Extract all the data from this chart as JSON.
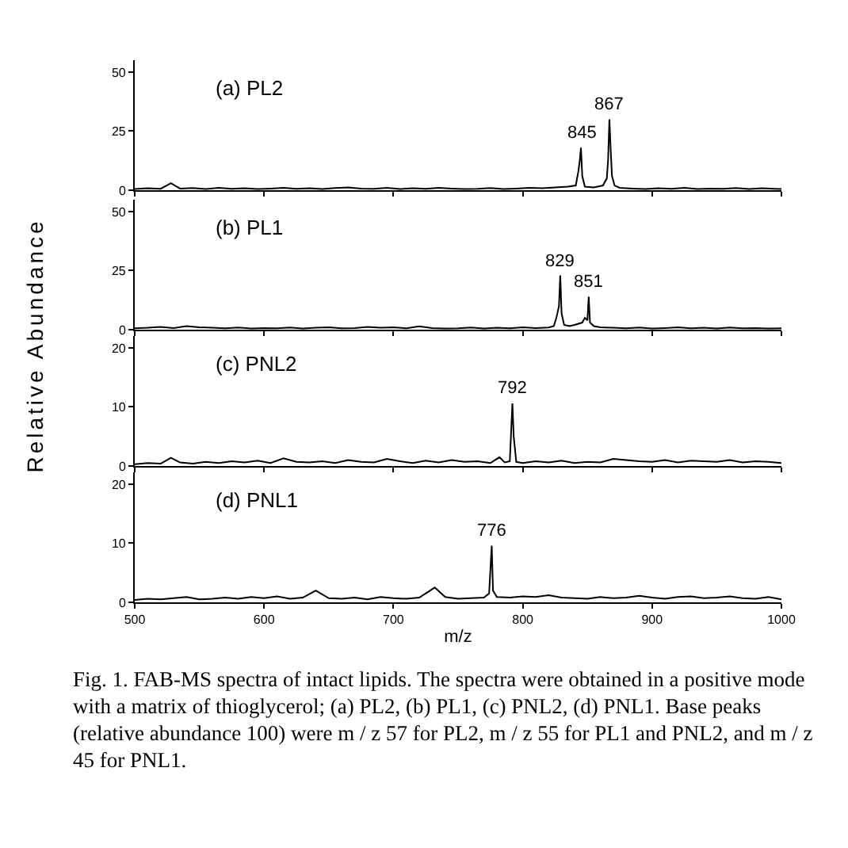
{
  "chart_data": [
    {
      "type": "line",
      "title": "(a) PL2",
      "ylabel": "Relative Abundance",
      "xlim": [
        500,
        1000
      ],
      "xticks": [
        500,
        600,
        700,
        800,
        900,
        1000
      ],
      "ylim": [
        0,
        55
      ],
      "yticks": [
        0,
        25,
        50
      ],
      "tick_labels": "y",
      "series": [
        {
          "color": "#000000",
          "x": [
            500,
            510,
            520,
            528,
            535,
            545,
            555,
            565,
            575,
            585,
            595,
            605,
            615,
            625,
            635,
            645,
            655,
            665,
            675,
            685,
            695,
            705,
            715,
            725,
            735,
            745,
            755,
            765,
            775,
            785,
            795,
            805,
            815,
            825,
            835,
            841,
            843,
            844,
            845,
            846,
            848,
            855,
            862,
            865,
            866,
            867,
            868,
            869,
            871,
            875,
            885,
            895,
            905,
            915,
            925,
            935,
            945,
            955,
            965,
            975,
            985,
            995,
            1000
          ],
          "values": [
            0.5,
            0.8,
            0.6,
            3,
            0.7,
            0.9,
            0.5,
            1,
            0.6,
            0.8,
            0.5,
            0.7,
            1,
            0.6,
            0.8,
            0.5,
            0.9,
            1.2,
            0.7,
            0.6,
            1,
            0.5,
            0.8,
            0.6,
            1,
            0.7,
            0.5,
            0.6,
            0.9,
            0.5,
            0.7,
            1,
            0.8,
            1.2,
            1.5,
            2,
            8,
            12,
            18,
            6,
            1.5,
            1.2,
            2,
            5,
            13,
            30,
            17,
            6,
            2,
            1,
            0.7,
            0.5,
            0.8,
            0.6,
            1,
            0.5,
            0.7,
            0.6,
            0.9,
            0.5,
            0.8,
            0.6,
            0.5
          ]
        }
      ],
      "annotations": [
        {
          "text": "845",
          "x": 845,
          "y": 18
        },
        {
          "text": "867",
          "x": 867,
          "y": 30
        }
      ]
    },
    {
      "type": "line",
      "title": "(b) PL1",
      "xlim": [
        500,
        1000
      ],
      "xticks": [
        500,
        600,
        700,
        800,
        900,
        1000
      ],
      "ylim": [
        0,
        55
      ],
      "yticks": [
        0,
        25,
        50
      ],
      "tick_labels": "y",
      "series": [
        {
          "color": "#000000",
          "x": [
            500,
            510,
            520,
            530,
            540,
            550,
            560,
            570,
            580,
            590,
            600,
            610,
            620,
            630,
            640,
            650,
            660,
            670,
            680,
            690,
            700,
            710,
            720,
            730,
            740,
            750,
            760,
            770,
            780,
            790,
            800,
            810,
            820,
            824,
            826,
            828,
            829,
            830,
            832,
            836,
            840,
            846,
            848,
            850,
            851,
            852,
            855,
            860,
            870,
            880,
            890,
            900,
            910,
            920,
            930,
            940,
            950,
            960,
            970,
            980,
            990,
            1000
          ],
          "values": [
            0.6,
            0.8,
            1.2,
            0.7,
            1.5,
            1,
            0.8,
            0.6,
            0.9,
            0.5,
            0.7,
            0.6,
            0.9,
            0.5,
            0.8,
            1,
            0.6,
            0.7,
            1.2,
            0.8,
            1,
            0.6,
            1.4,
            0.7,
            0.5,
            0.6,
            0.9,
            0.5,
            0.8,
            0.6,
            1,
            0.7,
            0.9,
            1.5,
            5,
            10,
            23,
            7,
            2,
            1.5,
            2,
            3,
            5,
            4,
            14,
            3,
            1.5,
            1,
            0.8,
            0.6,
            0.9,
            0.5,
            0.7,
            1,
            0.6,
            0.8,
            0.5,
            0.9,
            0.6,
            0.7,
            0.5,
            0.6
          ]
        }
      ],
      "annotations": [
        {
          "text": "829",
          "x": 829,
          "y": 23
        },
        {
          "text": "851",
          "x": 851,
          "y": 14
        }
      ]
    },
    {
      "type": "line",
      "title": "(c) PNL2",
      "xlim": [
        500,
        1000
      ],
      "xticks": [
        500,
        600,
        700,
        800,
        900,
        1000
      ],
      "ylim": [
        0,
        22
      ],
      "yticks": [
        0,
        10,
        20
      ],
      "tick_labels": "y",
      "series": [
        {
          "color": "#000000",
          "x": [
            500,
            510,
            520,
            528,
            535,
            545,
            555,
            565,
            575,
            585,
            595,
            605,
            615,
            625,
            635,
            645,
            655,
            665,
            675,
            685,
            695,
            705,
            715,
            725,
            735,
            745,
            755,
            765,
            775,
            782,
            786,
            790,
            792,
            793,
            795,
            800,
            810,
            820,
            830,
            840,
            850,
            860,
            870,
            880,
            890,
            900,
            910,
            920,
            930,
            940,
            950,
            960,
            970,
            980,
            990,
            1000
          ],
          "values": [
            0.3,
            0.5,
            0.4,
            1.4,
            0.6,
            0.4,
            0.7,
            0.5,
            0.8,
            0.6,
            0.9,
            0.5,
            1.3,
            0.7,
            0.6,
            0.8,
            0.5,
            1,
            0.7,
            0.6,
            1.2,
            0.8,
            0.5,
            0.9,
            0.6,
            1,
            0.7,
            0.8,
            0.5,
            1.5,
            0.6,
            0.8,
            10.6,
            5,
            0.7,
            0.5,
            0.8,
            0.6,
            0.9,
            0.5,
            0.7,
            0.6,
            1.2,
            1,
            0.8,
            0.7,
            1,
            0.6,
            0.9,
            0.8,
            0.7,
            1,
            0.6,
            0.8,
            0.7,
            0.5
          ]
        }
      ],
      "annotations": [
        {
          "text": "792",
          "x": 792,
          "y": 10.6
        }
      ]
    },
    {
      "type": "line",
      "title": "(d) PNL1",
      "xlabel": "m/z",
      "xlim": [
        500,
        1000
      ],
      "xticks": [
        500,
        600,
        700,
        800,
        900,
        1000
      ],
      "ylim": [
        0,
        22
      ],
      "yticks": [
        0,
        10,
        20
      ],
      "series": [
        {
          "color": "#000000",
          "x": [
            500,
            510,
            520,
            530,
            540,
            550,
            560,
            570,
            580,
            590,
            600,
            610,
            620,
            630,
            640,
            650,
            660,
            670,
            680,
            690,
            700,
            710,
            720,
            732,
            740,
            750,
            760,
            770,
            774,
            776,
            777,
            780,
            790,
            800,
            810,
            820,
            830,
            840,
            850,
            860,
            870,
            880,
            890,
            900,
            910,
            920,
            930,
            940,
            950,
            960,
            970,
            980,
            990,
            1000
          ],
          "values": [
            0.4,
            0.6,
            0.5,
            0.7,
            0.9,
            0.5,
            0.6,
            0.8,
            0.6,
            0.9,
            0.7,
            1,
            0.6,
            0.8,
            2,
            0.7,
            0.6,
            0.8,
            0.5,
            0.9,
            0.7,
            0.6,
            0.8,
            2.5,
            0.9,
            0.6,
            0.7,
            0.8,
            1.5,
            9.6,
            2,
            0.9,
            0.8,
            1,
            0.9,
            1.2,
            0.8,
            0.7,
            0.6,
            0.9,
            0.7,
            0.8,
            1.1,
            0.8,
            0.6,
            0.9,
            1,
            0.7,
            0.8,
            1,
            0.7,
            0.6,
            0.9,
            0.5
          ]
        }
      ],
      "annotations": [
        {
          "text": "776",
          "x": 776,
          "y": 9.6
        },
        "Fig. 1. FAB-MS spectra of intact lipids. The spectra were obtained in a positive mode with a matrix of thioglycerol; (a) PL2, (b) PL1, (c) PNL2, (d) PNL1. Base peaks (relative abundance 100) were m / z 57 for PL2, m / z 55 for PL1 and PNL2, and m / z 45 for PNL1."
      ]
    }
  ]
}
